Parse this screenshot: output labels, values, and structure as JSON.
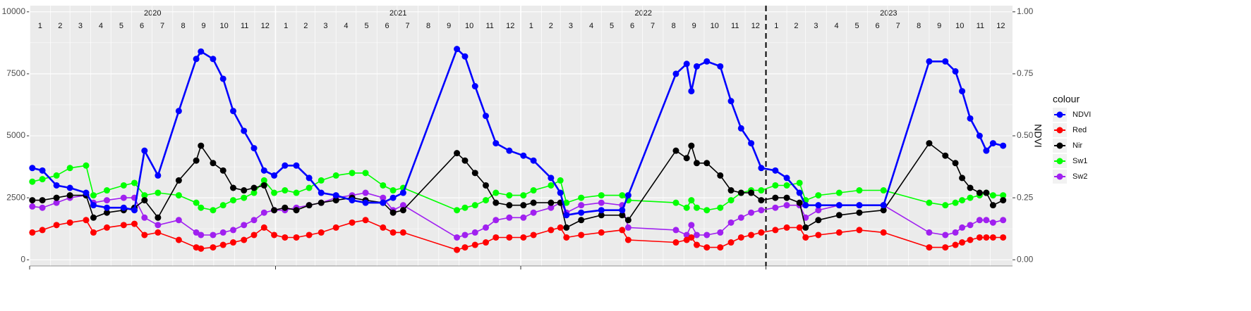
{
  "chart_data": {
    "type": "line",
    "years": [
      2020,
      2021,
      2022,
      2023
    ],
    "months": [
      1,
      2,
      3,
      4,
      5,
      6,
      7,
      8,
      9,
      10,
      11,
      12
    ],
    "vline": "2023-01-01",
    "xlim": [
      "2020-01-01",
      "2024-01-03"
    ],
    "ylim": [
      -250,
      10250
    ],
    "yticks": [
      0,
      2500,
      5000,
      7500,
      10000
    ],
    "y2lim": [
      -0.025,
      1.025
    ],
    "y2ticks": [
      {
        "value": 0,
        "label": "0.00"
      },
      {
        "value": 0.25,
        "label": "0.25"
      },
      {
        "value": 0.5,
        "label": "0.50"
      },
      {
        "value": 0.75,
        "label": "0.75"
      },
      {
        "value": 1,
        "label": "1.00"
      }
    ],
    "y2label": "NDVI",
    "legend_title": "colour",
    "grid": true,
    "x": [
      "2020-01-05",
      "2020-01-20",
      "2020-02-10",
      "2020-03-01",
      "2020-03-25",
      "2020-04-05",
      "2020-04-25",
      "2020-05-20",
      "2020-06-05",
      "2020-06-20",
      "2020-07-10",
      "2020-08-10",
      "2020-09-05",
      "2020-09-12",
      "2020-09-30",
      "2020-10-15",
      "2020-10-30",
      "2020-11-15",
      "2020-11-30",
      "2020-12-15",
      "2020-12-30",
      "2021-01-15",
      "2021-02-01",
      "2021-02-20",
      "2021-03-10",
      "2021-04-01",
      "2021-04-25",
      "2021-05-15",
      "2021-06-10",
      "2021-06-25",
      "2021-07-10",
      "2021-09-28",
      "2021-10-10",
      "2021-10-25",
      "2021-11-10",
      "2021-11-25",
      "2021-12-15",
      "2022-01-05",
      "2022-01-20",
      "2022-02-15",
      "2022-03-01",
      "2022-03-10",
      "2022-04-01",
      "2022-05-01",
      "2022-06-01",
      "2022-06-10",
      "2022-08-20",
      "2022-09-05",
      "2022-09-12",
      "2022-09-20",
      "2022-10-05",
      "2022-10-25",
      "2022-11-10",
      "2022-11-25",
      "2022-12-10",
      "2022-12-25",
      "2023-01-15",
      "2023-02-01",
      "2023-02-20",
      "2023-03-01",
      "2023-03-20",
      "2023-04-20",
      "2023-05-20",
      "2023-06-25",
      "2023-09-01",
      "2023-09-25",
      "2023-10-10",
      "2023-10-20",
      "2023-11-01",
      "2023-11-15",
      "2023-11-25",
      "2023-12-05",
      "2023-12-20"
    ],
    "series": [
      {
        "name": "NDVI",
        "color": "#0000ff",
        "axis": "y2",
        "values": [
          0.37,
          0.36,
          0.3,
          0.29,
          0.27,
          0.22,
          0.21,
          0.21,
          0.2,
          0.44,
          0.34,
          0.6,
          0.81,
          0.84,
          0.81,
          0.73,
          0.6,
          0.52,
          0.45,
          0.36,
          0.34,
          0.38,
          0.38,
          0.33,
          0.27,
          0.26,
          0.24,
          0.23,
          0.23,
          0.25,
          0.27,
          0.85,
          0.82,
          0.7,
          0.58,
          0.47,
          0.44,
          0.42,
          0.4,
          0.33,
          0.27,
          0.18,
          0.19,
          0.2,
          0.2,
          0.26,
          0.75,
          0.79,
          0.68,
          0.78,
          0.8,
          0.78,
          0.64,
          0.53,
          0.47,
          0.37,
          0.36,
          0.33,
          0.27,
          0.22,
          0.22,
          0.22,
          0.22,
          0.22,
          0.8,
          0.8,
          0.76,
          0.68,
          0.57,
          0.5,
          0.44,
          0.47,
          0.46
        ]
      },
      {
        "name": "Red",
        "color": "#ff0000",
        "values": [
          1100,
          1200,
          1400,
          1500,
          1600,
          1100,
          1300,
          1400,
          1450,
          1000,
          1100,
          800,
          500,
          450,
          500,
          600,
          700,
          800,
          1000,
          1300,
          1000,
          900,
          900,
          1000,
          1100,
          1300,
          1500,
          1600,
          1300,
          1100,
          1100,
          400,
          500,
          600,
          700,
          900,
          900,
          900,
          1000,
          1200,
          1300,
          900,
          1000,
          1100,
          1200,
          800,
          700,
          800,
          900,
          600,
          500,
          500,
          700,
          900,
          1000,
          1100,
          1200,
          1300,
          1300,
          900,
          1000,
          1100,
          1200,
          1100,
          500,
          500,
          600,
          700,
          800,
          900,
          900,
          900,
          900
        ]
      },
      {
        "name": "Nir",
        "color": "#000000",
        "values": [
          2400,
          2400,
          2500,
          2600,
          2600,
          1700,
          1900,
          2000,
          2100,
          2400,
          1700,
          3200,
          4000,
          4600,
          3900,
          3600,
          2900,
          2800,
          2900,
          3000,
          2000,
          2100,
          2000,
          2200,
          2300,
          2400,
          2500,
          2400,
          2300,
          1900,
          2000,
          4300,
          4000,
          3500,
          3000,
          2300,
          2200,
          2200,
          2300,
          2300,
          2300,
          1300,
          1600,
          1800,
          1800,
          1600,
          4400,
          4100,
          4600,
          3900,
          3900,
          3400,
          2800,
          2700,
          2700,
          2400,
          2500,
          2500,
          2300,
          1300,
          1600,
          1800,
          1900,
          2000,
          4700,
          4200,
          3900,
          3300,
          2900,
          2700,
          2700,
          2200,
          2400
        ]
      },
      {
        "name": "Sw1",
        "color": "#00ff00",
        "values": [
          3150,
          3250,
          3400,
          3700,
          3800,
          2600,
          2800,
          3000,
          3100,
          2600,
          2700,
          2600,
          2300,
          2100,
          2000,
          2200,
          2400,
          2500,
          2700,
          3200,
          2700,
          2800,
          2700,
          2900,
          3200,
          3400,
          3500,
          3500,
          3000,
          2800,
          2900,
          2000,
          2100,
          2200,
          2400,
          2700,
          2600,
          2600,
          2800,
          3000,
          3200,
          2300,
          2500,
          2600,
          2600,
          2400,
          2300,
          2100,
          2400,
          2100,
          2000,
          2100,
          2400,
          2700,
          2800,
          2800,
          3000,
          3000,
          3100,
          2400,
          2600,
          2700,
          2800,
          2800,
          2300,
          2200,
          2300,
          2400,
          2500,
          2600,
          2700,
          2600,
          2600
        ]
      },
      {
        "name": "Sw2",
        "color": "#a020f0",
        "values": [
          2150,
          2100,
          2300,
          2500,
          2600,
          2300,
          2400,
          2500,
          2500,
          1700,
          1400,
          1600,
          1100,
          1000,
          1000,
          1100,
          1200,
          1400,
          1600,
          1900,
          2000,
          2000,
          2100,
          2200,
          2300,
          2500,
          2600,
          2700,
          2500,
          2000,
          2200,
          900,
          1000,
          1100,
          1300,
          1600,
          1700,
          1700,
          1900,
          2100,
          2300,
          1900,
          2200,
          2300,
          2200,
          1300,
          1200,
          1000,
          1400,
          1000,
          1000,
          1100,
          1500,
          1700,
          1900,
          2000,
          2100,
          2200,
          2200,
          1700,
          2000,
          2200,
          2200,
          2200,
          1100,
          1000,
          1100,
          1300,
          1400,
          1600,
          1600,
          1500,
          1600
        ]
      }
    ]
  }
}
